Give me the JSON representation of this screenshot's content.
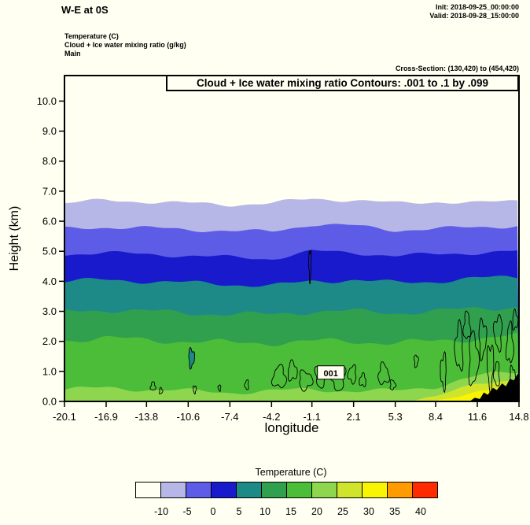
{
  "header": {
    "title": "W-E at 0S",
    "init": "Init: 2018-09-25_00:00:00",
    "valid": "Valid: 2018-09-28_15:00:00",
    "fields": [
      "Temperature  (C)",
      "Cloud + Ice water mixing ratio  (g/kg)",
      "Main"
    ],
    "cross_section": "Cross-Section: (130,420) to (454,420)"
  },
  "chart_data": {
    "type": "filled-contour-cross-section",
    "contour_title": "Cloud + Ice water mixing ratio Contours: .001 to .1 by .099",
    "xlabel": "longitude",
    "ylabel": "Height (km)",
    "xlim": [
      -20.1,
      14.8
    ],
    "ylim": [
      0,
      10.85
    ],
    "x_ticks": [
      "-20.1",
      "-16.9",
      "-13.8",
      "-10.6",
      "-7.4",
      "-4.2",
      "-1.1",
      "2.1",
      "5.3",
      "8.4",
      "11.6",
      "14.8"
    ],
    "y_ticks": [
      "0.0",
      "1.0",
      "2.0",
      "3.0",
      "4.0",
      "5.0",
      "6.0",
      "7.0",
      "8.0",
      "9.0",
      "10.0"
    ],
    "temperature_bands": [
      {
        "range_c": "below -10",
        "color": "#fffff2",
        "wiggle": 0
      },
      {
        "range_c": "-10 to -5",
        "color": "#b7b7e7",
        "wiggle": 0.05,
        "top_height_km": [
          6.6,
          6.7,
          6.65,
          6.6,
          6.55,
          6.6,
          6.75,
          6.7,
          6.6,
          6.65,
          6.6,
          6.7
        ]
      },
      {
        "range_c": "-5 to 0",
        "color": "#5c5ce6",
        "wiggle": 0.05,
        "top_height_km": [
          5.75,
          5.8,
          5.78,
          5.72,
          5.68,
          5.65,
          5.9,
          5.85,
          5.7,
          5.75,
          5.8,
          5.85
        ]
      },
      {
        "range_c": "0 to 5",
        "color": "#1a1acd",
        "wiggle": 0.05,
        "top_height_km": [
          4.9,
          4.95,
          4.9,
          4.85,
          4.8,
          4.75,
          5.0,
          4.95,
          4.85,
          4.9,
          4.95,
          5.0
        ]
      },
      {
        "range_c": "5 to 10",
        "color": "#1d8a88",
        "wiggle": 0.06,
        "top_height_km": [
          4.0,
          4.05,
          4.0,
          3.95,
          3.9,
          3.85,
          4.0,
          4.05,
          3.95,
          4.0,
          4.1,
          4.15
        ]
      },
      {
        "range_c": "10 to 15",
        "color": "#31a04e",
        "wiggle": 0.07,
        "top_height_km": [
          3.0,
          3.05,
          3.0,
          2.95,
          2.9,
          2.9,
          3.0,
          3.0,
          2.95,
          3.0,
          3.1,
          3.15
        ]
      },
      {
        "range_c": "15 to 20",
        "color": "#4cbd38",
        "wiggle": 0.08,
        "top_height_km": [
          2.05,
          2.1,
          2.05,
          2.0,
          1.95,
          1.95,
          2.0,
          2.0,
          1.95,
          2.0,
          2.1,
          2.2
        ]
      },
      {
        "range_c": "20 to 25",
        "color": "#8ed64e",
        "wiggle": 0.06,
        "top_height_km": [
          0.4,
          0.45,
          0.4,
          0.35,
          0.3,
          0.35,
          0.4,
          0.35,
          0.35,
          0.5,
          0.85,
          1.0
        ]
      },
      {
        "range_c": "25 to 30",
        "color": "#cfe42b",
        "wiggle": 0.04,
        "top_height_km": [
          0,
          0,
          0,
          0,
          0,
          0,
          0,
          0,
          0,
          0.15,
          0.6,
          0.75
        ]
      },
      {
        "range_c": "30 to 35",
        "color": "#f8f403",
        "wiggle": 0.03,
        "top_height_km": [
          0,
          0,
          0,
          0,
          0,
          0,
          0,
          0,
          0,
          0,
          0.35,
          0.55
        ]
      }
    ],
    "cloud_contours": {
      "interval": ".001 to .1 by .099",
      "label": {
        "text": "001",
        "x": 0.35,
        "y": 0.95
      },
      "blobs": [
        {
          "x": -13.3,
          "y": 0.5,
          "rx": 0.18,
          "ry": 0.14
        },
        {
          "x": -12.7,
          "y": 0.35,
          "rx": 0.12,
          "ry": 0.1
        },
        {
          "x": -10.35,
          "y": 1.45,
          "rx": 0.22,
          "ry": 0.3,
          "fill": "#1d8a88"
        },
        {
          "x": -10.1,
          "y": 0.4,
          "rx": 0.12,
          "ry": 0.12
        },
        {
          "x": -8.2,
          "y": 0.45,
          "rx": 0.1,
          "ry": 0.1
        },
        {
          "x": -6.1,
          "y": 0.55,
          "rx": 0.14,
          "ry": 0.16
        },
        {
          "x": -3.6,
          "y": 0.8,
          "rx": 0.5,
          "ry": 0.35
        },
        {
          "x": -2.6,
          "y": 1.0,
          "rx": 0.35,
          "ry": 0.3
        },
        {
          "x": -1.6,
          "y": 0.7,
          "rx": 0.5,
          "ry": 0.3
        },
        {
          "x": -0.4,
          "y": 0.85,
          "rx": 0.45,
          "ry": 0.35
        },
        {
          "x": 0.9,
          "y": 0.8,
          "rx": 0.55,
          "ry": 0.4
        },
        {
          "x": 2.0,
          "y": 0.9,
          "rx": 0.3,
          "ry": 0.28
        },
        {
          "x": 2.8,
          "y": 0.7,
          "rx": 0.25,
          "ry": 0.2
        },
        {
          "x": 4.4,
          "y": 0.9,
          "rx": 0.4,
          "ry": 0.33
        },
        {
          "x": 5.1,
          "y": 0.55,
          "rx": 0.2,
          "ry": 0.16
        },
        {
          "x": 6.9,
          "y": 1.35,
          "rx": 0.15,
          "ry": 0.2
        },
        {
          "x": -1.25,
          "y": 4.55,
          "rx": 0.09,
          "ry": 0.5
        },
        {
          "x": 9.0,
          "y": 1.0,
          "rx": 0.22,
          "ry": 0.55
        },
        {
          "x": 10.2,
          "y": 1.8,
          "rx": 0.3,
          "ry": 0.75
        },
        {
          "x": 10.8,
          "y": 2.5,
          "rx": 0.25,
          "ry": 0.45
        },
        {
          "x": 11.3,
          "y": 1.4,
          "rx": 0.35,
          "ry": 0.85
        },
        {
          "x": 12.0,
          "y": 2.1,
          "rx": 0.28,
          "ry": 0.6
        },
        {
          "x": 12.6,
          "y": 1.2,
          "rx": 0.25,
          "ry": 0.7
        },
        {
          "x": 13.2,
          "y": 2.3,
          "rx": 0.3,
          "ry": 0.55
        },
        {
          "x": 13.1,
          "y": 0.9,
          "rx": 0.2,
          "ry": 0.4
        },
        {
          "x": 14.1,
          "y": 1.9,
          "rx": 0.26,
          "ry": 0.65
        },
        {
          "x": 14.5,
          "y": 2.7,
          "rx": 0.2,
          "ry": 0.3
        },
        {
          "x": 14.3,
          "y": 0.8,
          "rx": 0.2,
          "ry": 0.35
        }
      ]
    },
    "terrain_profile_km": [
      [
        11.0,
        0
      ],
      [
        11.4,
        0.12
      ],
      [
        11.8,
        0.08
      ],
      [
        12.1,
        0.3
      ],
      [
        12.4,
        0.22
      ],
      [
        12.8,
        0.45
      ],
      [
        13.1,
        0.38
      ],
      [
        13.5,
        0.6
      ],
      [
        13.8,
        0.5
      ],
      [
        14.1,
        0.75
      ],
      [
        14.4,
        0.7
      ],
      [
        14.65,
        0.88
      ],
      [
        14.8,
        0.95
      ]
    ]
  },
  "colorbar": {
    "title": "Temperature  (C)",
    "colors": [
      "#fffff2",
      "#b7b7e7",
      "#5c5ce6",
      "#1a1acd",
      "#1d8a88",
      "#31a04e",
      "#4cbd38",
      "#8ed64e",
      "#cfe42b",
      "#f8f403",
      "#ff9b00",
      "#ff2a00"
    ],
    "tick_labels": [
      "-10",
      "-5",
      "0",
      "5",
      "10",
      "15",
      "20",
      "25",
      "30",
      "35",
      "40"
    ]
  }
}
